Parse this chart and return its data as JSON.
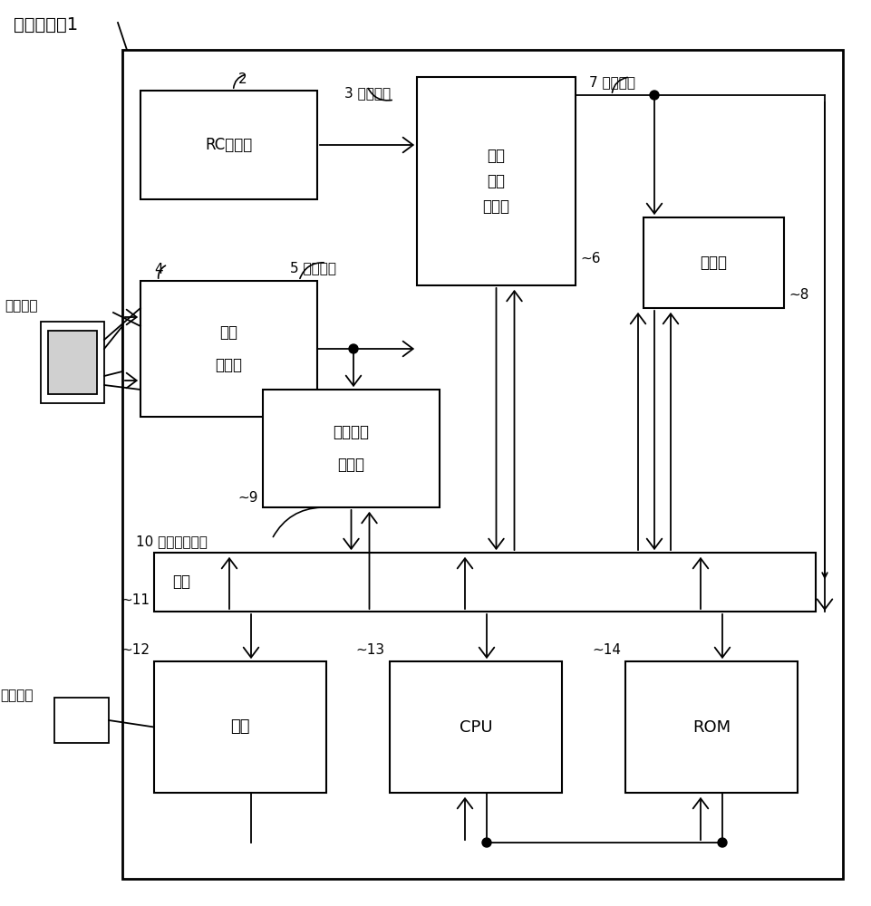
{
  "bg_color": "#ffffff",
  "line_color": "#000000",
  "box_fill": "#ffffff",
  "labels": {
    "title": "微型控制器1",
    "rc": "RC振荡器",
    "crystal_l1": "晶体",
    "crystal_l2": "振荡器",
    "selector_l1": "基本",
    "selector_l2": "时钟",
    "selector_l3": "选择器",
    "interrupt_l1": "中断请求",
    "interrupt_l2": "寄存器",
    "timer": "计时器",
    "bus": "总线",
    "port": "端口",
    "cpu": "CPU",
    "rom": "ROM",
    "quartz": "石英振子",
    "ext_terminal": "外部端子",
    "n2": "2",
    "n3": "3 基本时钟",
    "n4": "4",
    "n5": "5 基本时钟",
    "n6": "6",
    "n7": "7 系统时钟",
    "n8": "8",
    "n9": "9",
    "n10": "10 中断请求信号",
    "n11": "11",
    "n12": "12",
    "n13": "13",
    "n14": "14"
  }
}
